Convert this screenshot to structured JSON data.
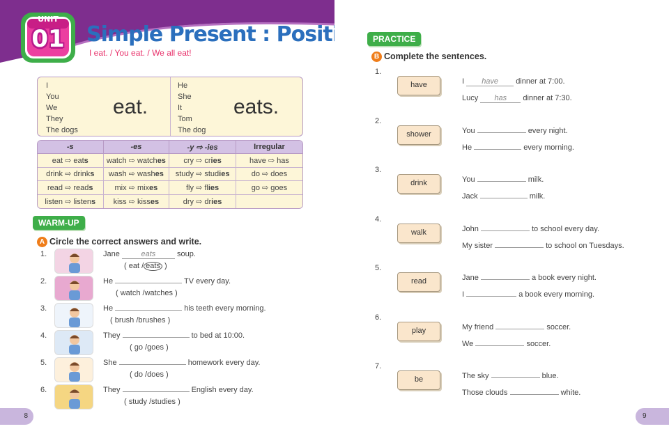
{
  "left_page": {
    "unit_label": "UNIT",
    "unit_number": "01",
    "title": "Simple Present : Positive",
    "subtitle": "I eat. / You eat. / We all eat!",
    "subjects_plain": [
      "I",
      "You",
      "We",
      "They",
      "The dogs"
    ],
    "verb_plain": "eat.",
    "subjects_third": [
      "He",
      "She",
      "It",
      "Tom",
      "The dog"
    ],
    "verb_third": "eats.",
    "arrow": "⇨",
    "table": {
      "headers": [
        "-s",
        "-es",
        "-y",
        "-ies",
        "Irregular"
      ],
      "rows": [
        [
          [
            "eat",
            "eat",
            "s"
          ],
          [
            "watch",
            "watch",
            "es"
          ],
          [
            "cry",
            "cr",
            "ies"
          ],
          [
            "have",
            "has",
            ""
          ]
        ],
        [
          [
            "drink",
            "drink",
            "s"
          ],
          [
            "wash",
            "wash",
            "es"
          ],
          [
            "study",
            "stud",
            "ies"
          ],
          [
            "do",
            "does",
            ""
          ]
        ],
        [
          [
            "read",
            "read",
            "s"
          ],
          [
            "mix",
            "mix",
            "es"
          ],
          [
            "fly",
            "fl",
            "ies"
          ],
          [
            "go",
            "goes",
            ""
          ]
        ],
        [
          [
            "listen",
            "listen",
            "s"
          ],
          [
            "kiss",
            "kiss",
            "es"
          ],
          [
            "dry",
            "dr",
            "ies"
          ],
          [
            "",
            "",
            ""
          ]
        ]
      ]
    },
    "warmup_tag": "WARM-UP",
    "section_a_letter": "A",
    "section_a_instruction": "Circle the correct answers and write.",
    "exercises": [
      {
        "num": "1.",
        "before": "Jane",
        "answer": "eats",
        "after": "soup.",
        "opt1": "eat",
        "sep": "/",
        "opt2": "eats",
        "circled": "2"
      },
      {
        "num": "2.",
        "before": "He",
        "answer": "",
        "after": "TV every day.",
        "opt1": "watch",
        "sep": "/",
        "opt2": "watches",
        "circled": ""
      },
      {
        "num": "3.",
        "before": "He",
        "answer": "",
        "after": "his teeth every morning.",
        "opt1": "brush",
        "sep": "/",
        "opt2": "brushes",
        "circled": ""
      },
      {
        "num": "4.",
        "before": "They",
        "answer": "",
        "after": "to bed at 10:00.",
        "opt1": "go",
        "sep": "/",
        "opt2": "goes",
        "circled": ""
      },
      {
        "num": "5.",
        "before": "She",
        "answer": "",
        "after": "homework every day.",
        "opt1": "do",
        "sep": "/",
        "opt2": "does",
        "circled": ""
      },
      {
        "num": "6.",
        "before": "They",
        "answer": "",
        "after": "English every day.",
        "opt1": "study",
        "sep": "/",
        "opt2": "studies",
        "circled": ""
      }
    ],
    "page_number": "8"
  },
  "right_page": {
    "practice_tag": "PRACTICE",
    "section_b_letter": "B",
    "section_b_instruction": "Complete the sentences.",
    "items": [
      {
        "num": "1.",
        "verb": "have",
        "lines": [
          {
            "before": "I",
            "answer": "have",
            "after": "dinner at 7:00."
          },
          {
            "before": "Lucy",
            "answer": "has",
            "after": "dinner at 7:30."
          }
        ]
      },
      {
        "num": "2.",
        "verb": "shower",
        "lines": [
          {
            "before": "You",
            "answer": "",
            "after": "every night."
          },
          {
            "before": "He",
            "answer": "",
            "after": "every morning."
          }
        ]
      },
      {
        "num": "3.",
        "verb": "drink",
        "lines": [
          {
            "before": "You",
            "answer": "",
            "after": "milk."
          },
          {
            "before": "Jack",
            "answer": "",
            "after": "milk."
          }
        ]
      },
      {
        "num": "4.",
        "verb": "walk",
        "lines": [
          {
            "before": "John",
            "answer": "",
            "after": "to school every day."
          },
          {
            "before": "My sister",
            "answer": "",
            "after": "to school on Tuesdays."
          }
        ]
      },
      {
        "num": "5.",
        "verb": "read",
        "lines": [
          {
            "before": "Jane",
            "answer": "",
            "after": "a book every night."
          },
          {
            "before": "I",
            "answer": "",
            "after": "a book every morning."
          }
        ]
      },
      {
        "num": "6.",
        "verb": "play",
        "lines": [
          {
            "before": "My friend",
            "answer": "",
            "after": "soccer."
          },
          {
            "before": "We",
            "answer": "",
            "after": "soccer."
          }
        ]
      },
      {
        "num": "7.",
        "verb": "be",
        "lines": [
          {
            "before": "The sky",
            "answer": "",
            "after": "blue."
          },
          {
            "before": "Those clouds",
            "answer": "",
            "after": "white."
          }
        ]
      }
    ],
    "page_number": "9"
  },
  "colors": {
    "banner_purple": "#7e2e8e",
    "title_blue": "#2b6fbd",
    "subtitle_pink": "#e8326b",
    "tag_green": "#3eae49",
    "badge_orange": "#ef7d1a",
    "table_header": "#d3c1e4",
    "table_body": "#fdf6d8",
    "verb_card": "#fae6cc",
    "page_tab": "#c9b6dd"
  }
}
